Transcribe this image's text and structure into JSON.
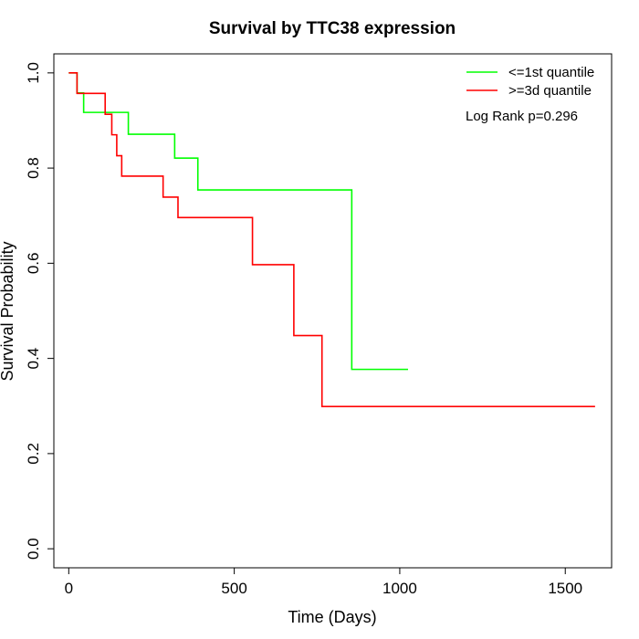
{
  "chart_data": {
    "type": "line",
    "step": true,
    "title": "Survival by TTC38 expression",
    "xlabel": "Time (Days)",
    "ylabel": "Survival Probability",
    "xlim": [
      -45,
      1640
    ],
    "ylim": [
      -0.04,
      1.04
    ],
    "x_ticks": [
      0,
      500,
      1000,
      1500
    ],
    "x_tick_labels": [
      "0",
      "500",
      "1000",
      "1500"
    ],
    "y_ticks": [
      0.0,
      0.2,
      0.4,
      0.6,
      0.8,
      1.0
    ],
    "y_tick_labels": [
      "0.0",
      "0.2",
      "0.4",
      "0.6",
      "0.8",
      "1.0"
    ],
    "grid": false,
    "legend_position": "top-right",
    "annotation": "Log Rank p=0.296",
    "series": [
      {
        "name": "<=1st quantile",
        "color": "#00ff00",
        "points": [
          [
            0,
            1.0
          ],
          [
            25,
            1.0
          ],
          [
            25,
            0.958
          ],
          [
            45,
            0.958
          ],
          [
            45,
            0.917
          ],
          [
            180,
            0.917
          ],
          [
            180,
            0.871
          ],
          [
            320,
            0.871
          ],
          [
            320,
            0.821
          ],
          [
            390,
            0.821
          ],
          [
            390,
            0.754
          ],
          [
            855,
            0.754
          ],
          [
            855,
            0.377
          ],
          [
            1025,
            0.377
          ]
        ]
      },
      {
        "name": ">=3d quantile",
        "color": "#ff0000",
        "points": [
          [
            0,
            1.0
          ],
          [
            25,
            1.0
          ],
          [
            25,
            0.957
          ],
          [
            110,
            0.957
          ],
          [
            110,
            0.913
          ],
          [
            130,
            0.913
          ],
          [
            130,
            0.87
          ],
          [
            145,
            0.87
          ],
          [
            145,
            0.826
          ],
          [
            160,
            0.826
          ],
          [
            160,
            0.783
          ],
          [
            285,
            0.783
          ],
          [
            285,
            0.739
          ],
          [
            330,
            0.739
          ],
          [
            330,
            0.696
          ],
          [
            555,
            0.696
          ],
          [
            555,
            0.597
          ],
          [
            680,
            0.597
          ],
          [
            680,
            0.448
          ],
          [
            765,
            0.448
          ],
          [
            765,
            0.299
          ],
          [
            1590,
            0.299
          ]
        ]
      }
    ]
  }
}
